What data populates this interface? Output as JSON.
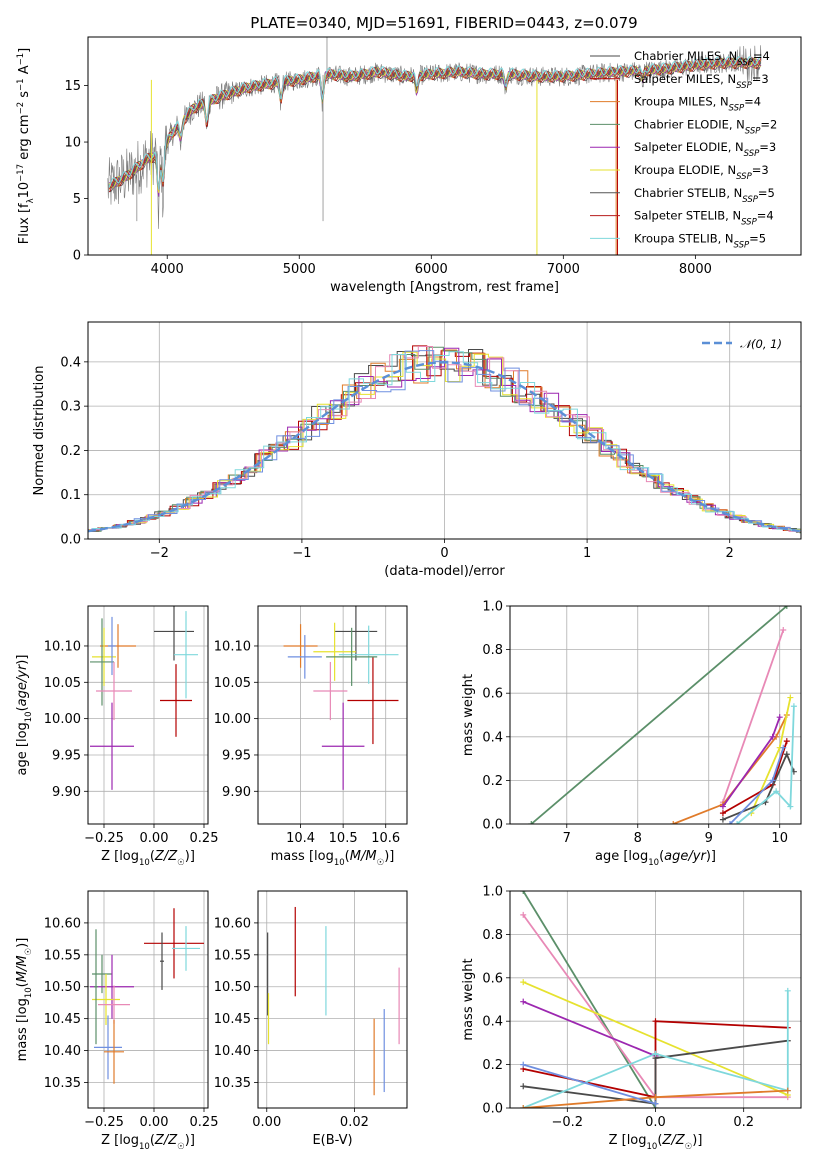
{
  "figure": {
    "title": "PLATE=0340, MJD=51691, FIBERID=0443, z=0.079"
  },
  "chart_data": [
    {
      "id": "spectrum",
      "type": "line",
      "xlabel": "wavelength [Angstrom, rest frame]",
      "ylabel": "Flux [f_λ 10^-17 erg cm^-2 s^-1 A^-1]",
      "xlim": [
        3400,
        8800
      ],
      "ylim": [
        0,
        19.3
      ],
      "xticks": [
        4000,
        5000,
        6000,
        7000,
        8000
      ],
      "yticks": [
        0,
        5,
        10,
        15
      ],
      "grid": false,
      "legend_position": "upper-right",
      "continuum": {
        "x": [
          3550,
          3700,
          3850,
          3950,
          4050,
          4200,
          4400,
          4600,
          4800,
          5000,
          5200,
          5400,
          5600,
          5800,
          6000,
          6200,
          6400,
          6600,
          6800,
          7000,
          7200,
          7400,
          7600,
          7800,
          8000,
          8200,
          8400,
          8500
        ],
        "y": [
          6.0,
          7.0,
          8.5,
          9.0,
          11.0,
          13.0,
          14.0,
          14.8,
          15.2,
          15.5,
          16.0,
          15.8,
          16.2,
          15.8,
          16.0,
          16.2,
          16.0,
          16.0,
          15.8,
          15.8,
          16.0,
          16.2,
          16.3,
          16.5,
          16.8,
          17.0,
          17.0,
          17.0
        ]
      },
      "series": [
        {
          "name": "Chabrier MILES, N_SSP=4",
          "color": "#4a4a4a"
        },
        {
          "name": "Salpeter MILES, N_SSP=3",
          "color": "#b30000"
        },
        {
          "name": "Kroupa MILES, N_SSP=4",
          "color": "#e07b2a"
        },
        {
          "name": "Chabrier ELODIE, N_SSP=2",
          "color": "#5b8f69"
        },
        {
          "name": "Salpeter ELODIE, N_SSP=3",
          "color": "#9c27b0"
        },
        {
          "name": "Kroupa ELODIE, N_SSP=3",
          "color": "#e6e22f"
        },
        {
          "name": "Chabrier STELIB, N_SSP=5",
          "color": "#555555"
        },
        {
          "name": "Salpeter STELIB, N_SSP=4",
          "color": "#b71c1c"
        },
        {
          "name": "Kroupa STELIB, N_SSP=5",
          "color": "#7fd8dc"
        }
      ]
    },
    {
      "id": "residuals",
      "type": "histogram",
      "xlabel": "(data-model)/error",
      "ylabel": "Normed distribution",
      "xlim": [
        -2.5,
        2.5
      ],
      "ylim": [
        0,
        0.49
      ],
      "xticks": [
        -2,
        -1,
        0,
        1,
        2
      ],
      "yticks": [
        0.0,
        0.1,
        0.2,
        0.3,
        0.4
      ],
      "grid": true,
      "legend_position": "upper-right",
      "reference": {
        "name": "N(0,1)",
        "color": "#5b8fd6"
      },
      "bin_width": 0.1,
      "series_colors": [
        "#4a4a4a",
        "#b30000",
        "#e07b2a",
        "#5b8f69",
        "#9c27b0",
        "#e6e22f",
        "#e889b6",
        "#6f8fe0",
        "#7fd8dc"
      ]
    },
    {
      "id": "age-vs-Z",
      "type": "errorbar",
      "xlabel": "Z [log10(Z/Z☉)]",
      "ylabel": "age [log10(age/yr)]",
      "xlim": [
        -0.33,
        0.27
      ],
      "ylim": [
        9.855,
        10.155
      ],
      "xticks": [
        -0.25,
        0.0,
        0.25
      ],
      "yticks": [
        9.9,
        9.95,
        10.0,
        10.05,
        10.1
      ],
      "grid": true,
      "points": [
        {
          "x": 0.1,
          "y": 10.12,
          "xerr": 0.1,
          "yerr": 0.04,
          "color": "#4a4a4a"
        },
        {
          "x": 0.11,
          "y": 10.025,
          "xerr": 0.08,
          "yerr": 0.05,
          "color": "#b30000"
        },
        {
          "x": 0.16,
          "y": 10.088,
          "xerr": 0.06,
          "yerr": 0.06,
          "color": "#7fd8dc"
        },
        {
          "x": -0.18,
          "y": 10.1,
          "xerr": 0.09,
          "yerr": 0.03,
          "color": "#e07b2a"
        },
        {
          "x": -0.25,
          "y": 10.085,
          "xerr": 0.06,
          "yerr": 0.04,
          "color": "#e6e22f"
        },
        {
          "x": -0.26,
          "y": 10.078,
          "xerr": 0.06,
          "yerr": 0.06,
          "color": "#5b8f69"
        },
        {
          "x": -0.2,
          "y": 10.038,
          "xerr": 0.09,
          "yerr": 0.04,
          "color": "#e889b6"
        },
        {
          "x": -0.21,
          "y": 9.962,
          "xerr": 0.11,
          "yerr": 0.06,
          "color": "#9c27b0"
        },
        {
          "x": -0.21,
          "y": 10.1,
          "xerr": 0.02,
          "yerr": 0.04,
          "color": "#6f8fe0"
        }
      ]
    },
    {
      "id": "age-vs-mass",
      "type": "errorbar",
      "xlabel": "mass [log10(M/M☉)]",
      "ylabel": "",
      "xlim": [
        10.3,
        10.65
      ],
      "ylim": [
        9.855,
        10.155
      ],
      "xticks": [
        10.4,
        10.5,
        10.6
      ],
      "yticks": [
        9.9,
        9.95,
        10.0,
        10.05,
        10.1
      ],
      "grid": true,
      "points": [
        {
          "x": 10.53,
          "y": 10.12,
          "xerr": 0.05,
          "yerr": 0.04,
          "color": "#4a4a4a"
        },
        {
          "x": 10.57,
          "y": 10.025,
          "xerr": 0.06,
          "yerr": 0.06,
          "color": "#b30000"
        },
        {
          "x": 10.56,
          "y": 10.088,
          "xerr": 0.07,
          "yerr": 0.04,
          "color": "#7fd8dc"
        },
        {
          "x": 10.4,
          "y": 10.1,
          "xerr": 0.04,
          "yerr": 0.03,
          "color": "#e07b2a"
        },
        {
          "x": 10.48,
          "y": 10.092,
          "xerr": 0.05,
          "yerr": 0.04,
          "color": "#e6e22f"
        },
        {
          "x": 10.52,
          "y": 10.085,
          "xerr": 0.06,
          "yerr": 0.04,
          "color": "#5b8f69"
        },
        {
          "x": 10.47,
          "y": 10.038,
          "xerr": 0.04,
          "yerr": 0.04,
          "color": "#e889b6"
        },
        {
          "x": 10.5,
          "y": 9.962,
          "xerr": 0.05,
          "yerr": 0.06,
          "color": "#9c27b0"
        },
        {
          "x": 10.41,
          "y": 10.085,
          "xerr": 0.04,
          "yerr": 0.03,
          "color": "#6f8fe0"
        }
      ]
    },
    {
      "id": "mass-weight-vs-age",
      "type": "line",
      "xlabel": "age [log10(age/yr)]",
      "ylabel": "mass weight",
      "xlim": [
        6.2,
        10.3
      ],
      "ylim": [
        0,
        1
      ],
      "xticks": [
        7,
        8,
        9,
        10
      ],
      "yticks": [
        0.0,
        0.2,
        0.4,
        0.6,
        0.8,
        1.0
      ],
      "grid": true,
      "series": [
        {
          "color": "#5b8f69",
          "x": [
            6.5,
            10.1
          ],
          "y": [
            0.0,
            1.0
          ]
        },
        {
          "color": "#e889b6",
          "x": [
            9.2,
            10.05
          ],
          "y": [
            0.1,
            0.89
          ]
        },
        {
          "color": "#e07b2a",
          "x": [
            8.5,
            9.2,
            9.95,
            10.1
          ],
          "y": [
            0.0,
            0.09,
            0.4,
            0.5
          ]
        },
        {
          "color": "#e6e22f",
          "x": [
            9.6,
            10.0,
            10.15
          ],
          "y": [
            0.05,
            0.35,
            0.58
          ]
        },
        {
          "color": "#9c27b0",
          "x": [
            9.2,
            9.9,
            10.0
          ],
          "y": [
            0.08,
            0.4,
            0.49
          ]
        },
        {
          "color": "#b30000",
          "x": [
            9.2,
            9.9,
            10.1
          ],
          "y": [
            0.05,
            0.18,
            0.38
          ]
        },
        {
          "color": "#4a4a4a",
          "x": [
            9.2,
            9.8,
            10.1,
            10.2
          ],
          "y": [
            0.02,
            0.1,
            0.32,
            0.24
          ]
        },
        {
          "color": "#7fd8dc",
          "x": [
            9.4,
            9.95,
            10.15,
            10.2
          ],
          "y": [
            0.0,
            0.15,
            0.08,
            0.54
          ]
        },
        {
          "color": "#6f8fe0",
          "x": [
            9.3,
            9.9,
            10.05
          ],
          "y": [
            0.0,
            0.2,
            0.35
          ]
        }
      ]
    },
    {
      "id": "mass-vs-Z",
      "type": "errorbar",
      "xlabel": "Z [log10(Z/Z☉)]",
      "ylabel": "mass [log10(M/M☉)]",
      "xlim": [
        -0.33,
        0.27
      ],
      "ylim": [
        10.31,
        10.65
      ],
      "xticks": [
        -0.25,
        0.0,
        0.25
      ],
      "yticks": [
        10.35,
        10.4,
        10.45,
        10.5,
        10.55,
        10.6
      ],
      "grid": true,
      "points": [
        {
          "x": 0.1,
          "y": 10.568,
          "xerr": 0.15,
          "yerr": 0.055,
          "color": "#b30000"
        },
        {
          "x": 0.16,
          "y": 10.56,
          "xerr": 0.07,
          "yerr": 0.035,
          "color": "#7fd8dc"
        },
        {
          "x": 0.04,
          "y": 10.54,
          "xerr": 0.01,
          "yerr": 0.045,
          "color": "#4a4a4a"
        },
        {
          "x": -0.26,
          "y": 10.52,
          "xerr": 0.05,
          "yerr": 0.03,
          "color": "#5b8f69"
        },
        {
          "x": -0.21,
          "y": 10.5,
          "xerr": 0.11,
          "yerr": 0.05,
          "color": "#9c27b0"
        },
        {
          "x": -0.24,
          "y": 10.48,
          "xerr": 0.07,
          "yerr": 0.04,
          "color": "#e6e22f"
        },
        {
          "x": -0.2,
          "y": 10.472,
          "xerr": 0.08,
          "yerr": 0.03,
          "color": "#e889b6"
        },
        {
          "x": -0.23,
          "y": 10.405,
          "xerr": 0.07,
          "yerr": 0.05,
          "color": "#6f8fe0"
        },
        {
          "x": -0.2,
          "y": 10.398,
          "xerr": 0.05,
          "yerr": 0.05,
          "color": "#e07b2a"
        },
        {
          "x": -0.29,
          "y": 10.5,
          "xerr": 0.01,
          "yerr": 0.09,
          "color": "#5b8f69"
        }
      ]
    },
    {
      "id": "mass-vs-ebv",
      "type": "errorbar",
      "xlabel": "E(B-V)",
      "ylabel": "",
      "xlim": [
        -0.002,
        0.032
      ],
      "ylim": [
        10.31,
        10.65
      ],
      "xticks": [
        0.0,
        0.02
      ],
      "yticks": [
        10.35,
        10.4,
        10.45,
        10.5,
        10.55,
        10.6
      ],
      "grid": true,
      "points": [
        {
          "x": 0.0002,
          "y": 10.52,
          "xerr": 0.0,
          "yerr": 0.065,
          "color": "#4a4a4a"
        },
        {
          "x": 0.0004,
          "y": 10.45,
          "xerr": 0.0,
          "yerr": 0.04,
          "color": "#e6e22f"
        },
        {
          "x": 0.0065,
          "y": 10.555,
          "xerr": 0.0,
          "yerr": 0.07,
          "color": "#b30000"
        },
        {
          "x": 0.0135,
          "y": 10.525,
          "xerr": 0.0,
          "yerr": 0.07,
          "color": "#7fd8dc"
        },
        {
          "x": 0.0245,
          "y": 10.39,
          "xerr": 0.0,
          "yerr": 0.06,
          "color": "#e07b2a"
        },
        {
          "x": 0.0268,
          "y": 10.4,
          "xerr": 0.0,
          "yerr": 0.065,
          "color": "#6f8fe0"
        },
        {
          "x": 0.0302,
          "y": 10.47,
          "xerr": 0.0,
          "yerr": 0.06,
          "color": "#e889b6"
        }
      ]
    },
    {
      "id": "mass-weight-vs-Z",
      "type": "line",
      "xlabel": "Z [log10(Z/Z☉)]",
      "ylabel": "mass weight",
      "xlim": [
        -0.33,
        0.33
      ],
      "ylim": [
        0,
        1
      ],
      "xticks": [
        -0.2,
        0.0,
        0.2
      ],
      "yticks": [
        0.0,
        0.2,
        0.4,
        0.6,
        0.8,
        1.0
      ],
      "grid": true,
      "series": [
        {
          "color": "#5b8f69",
          "x": [
            -0.3,
            0.0
          ],
          "y": [
            1.0,
            0.0
          ]
        },
        {
          "color": "#e889b6",
          "x": [
            -0.3,
            0.0,
            0.3
          ],
          "y": [
            0.89,
            0.05,
            0.05
          ]
        },
        {
          "color": "#e6e22f",
          "x": [
            -0.3,
            0.3
          ],
          "y": [
            0.58,
            0.06
          ]
        },
        {
          "color": "#9c27b0",
          "x": [
            -0.3,
            0.0
          ],
          "y": [
            0.49,
            0.24
          ]
        },
        {
          "color": "#b30000",
          "x": [
            -0.3,
            0.0,
            0.0,
            0.3
          ],
          "y": [
            0.18,
            0.05,
            0.4,
            0.37
          ]
        },
        {
          "color": "#4a4a4a",
          "x": [
            -0.3,
            0.0,
            0.0,
            0.3
          ],
          "y": [
            0.1,
            0.02,
            0.23,
            0.31
          ]
        },
        {
          "color": "#7fd8dc",
          "x": [
            -0.3,
            0.0,
            0.3,
            0.3
          ],
          "y": [
            0.0,
            0.25,
            0.08,
            0.54
          ]
        },
        {
          "color": "#e07b2a",
          "x": [
            -0.3,
            0.0,
            0.3
          ],
          "y": [
            0.0,
            0.05,
            0.08
          ]
        },
        {
          "color": "#6f8fe0",
          "x": [
            -0.3,
            0.0
          ],
          "y": [
            0.2,
            0.02
          ]
        }
      ]
    }
  ]
}
